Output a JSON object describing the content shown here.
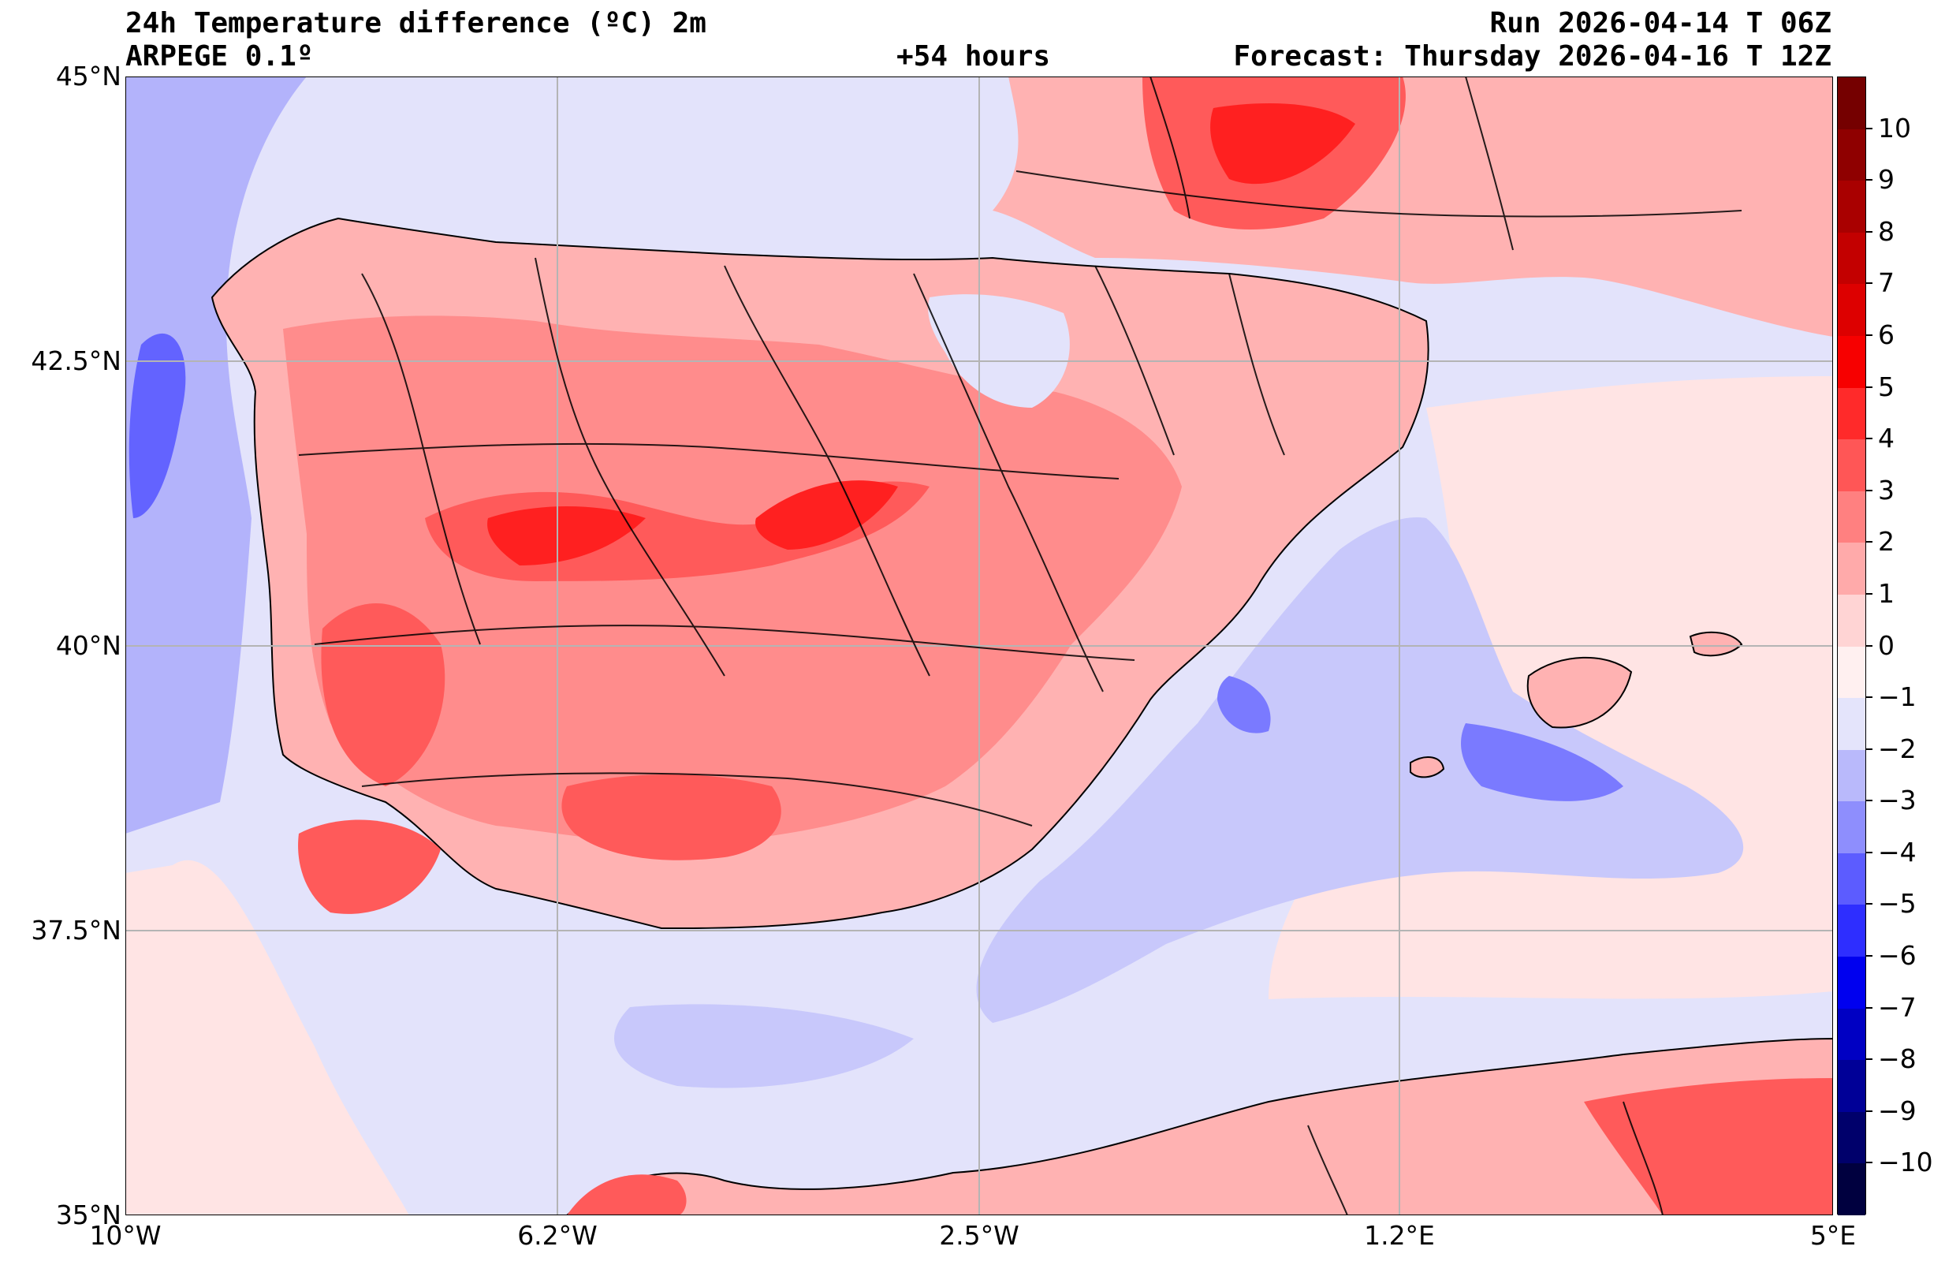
{
  "header": {
    "title": "24h Temperature difference (ºC) 2m",
    "model": "ARPEGE 0.1º",
    "lead": "+54 hours",
    "run": "Run 2026-04-14 T 06Z",
    "forecast": "Forecast: Thursday 2026-04-16 T 12Z"
  },
  "axes": {
    "lat_labels": [
      "45°N",
      "42.5°N",
      "40°N",
      "37.5°N",
      "35°N"
    ],
    "lon_labels": [
      "10°W",
      "6.2°W",
      "2.5°W",
      "1.2°E",
      "5°E"
    ]
  },
  "colorbar": {
    "labels": [
      "10",
      "9",
      "8",
      "7",
      "6",
      "5",
      "4",
      "3",
      "2",
      "1",
      "0",
      "−1",
      "−2",
      "−3",
      "−4",
      "−5",
      "−6",
      "−7",
      "−8",
      "−9",
      "−10"
    ],
    "colors_top_to_bottom": [
      "#750000",
      "#8f0000",
      "#a90000",
      "#c30000",
      "#dd0000",
      "#f70000",
      "#ff2a2a",
      "#ff5656",
      "#ff8080",
      "#ffaaaa",
      "#ffd4d4",
      "#fff0f0",
      "#e4e4fb",
      "#b9b9fb",
      "#8e8efd",
      "#5c5cff",
      "#2e2eff",
      "#0000ef",
      "#0000c3",
      "#000097",
      "#00006b",
      "#00003f"
    ]
  },
  "map_colors": {
    "sea_neutral": "#e3e3fb",
    "atlantic_cool": "#b3b3fb",
    "atlantic_cold": "#5555ff",
    "med_warm": "#ffe4e4",
    "land_warm1": "#ffb2b2",
    "land_warm2": "#ff8c8c",
    "land_warm3": "#ff5a5a",
    "land_hot": "#ff2020",
    "med_cool": "#c8c8fb",
    "med_cold": "#7a7aff",
    "grid": "#b4b4b4",
    "border": "#000000"
  }
}
